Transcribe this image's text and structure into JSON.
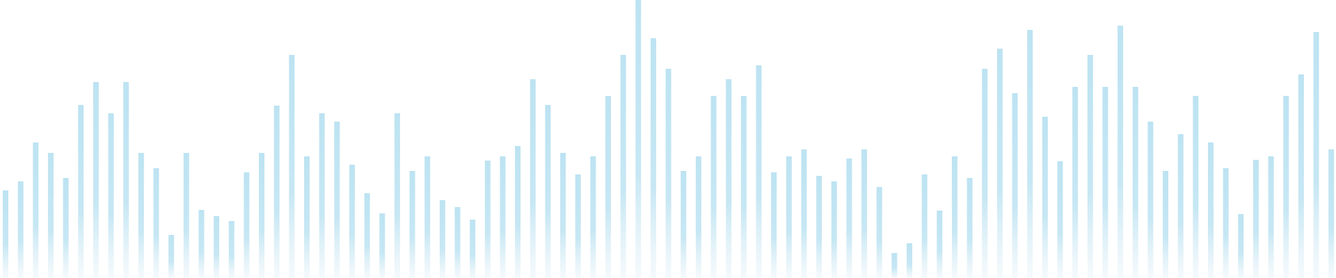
{
  "chart_data": {
    "type": "bar",
    "title": "",
    "xlabel": "",
    "ylabel": "",
    "ylim": [
      0,
      400
    ],
    "grid": false,
    "legend": "none",
    "bar_color": "#bde3f2",
    "bar_fade_color": "#eef6fa",
    "values": [
      126,
      139,
      195,
      180,
      144,
      249,
      282,
      237,
      282,
      180,
      158,
      62,
      180,
      98,
      89,
      82,
      152,
      180,
      248,
      321,
      175,
      237,
      225,
      163,
      122,
      93,
      237,
      154,
      175,
      112,
      102,
      84,
      169,
      175,
      190,
      286,
      249,
      180,
      149,
      175,
      262,
      321,
      400,
      345,
      301,
      154,
      175,
      262,
      286,
      262,
      306,
      152,
      175,
      185,
      147,
      139,
      172,
      185,
      131,
      36,
      50,
      149,
      97,
      175,
      144,
      301,
      330,
      266,
      357,
      232,
      168,
      275,
      321,
      275,
      363,
      275,
      225,
      154,
      207,
      262,
      195,
      158,
      92,
      170,
      175,
      262,
      293,
      354,
      185
    ]
  }
}
